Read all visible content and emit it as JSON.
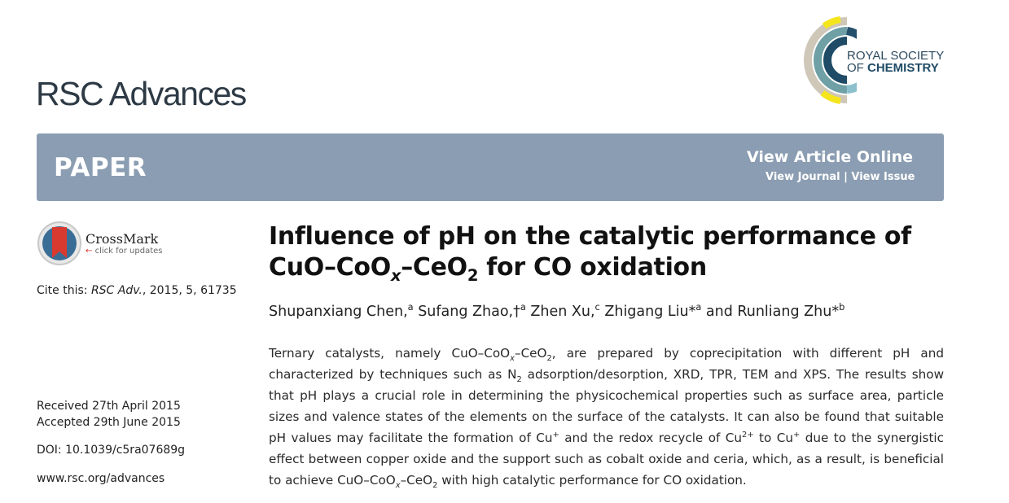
{
  "journal_title": "RSC Advances",
  "publisher_logo": {
    "line1": "ROYAL SOCIETY",
    "line2_prefix": "OF ",
    "line2_bold": "CHEMISTRY"
  },
  "banner": {
    "type_label": "PAPER",
    "view_article_online": "View Article Online",
    "view_journal": "View Journal",
    "separator": "|",
    "view_issue": "View Issue",
    "color": "#8b9db2"
  },
  "crossmark": {
    "name": "CrossMark",
    "subtitle": "click for updates",
    "arrow": "←"
  },
  "cite": {
    "label": "Cite this:",
    "journal": "RSC Adv.",
    "details": ", 2015, 5, 61735"
  },
  "received": "Received 27th April 2015",
  "accepted": "Accepted 29th June 2015",
  "doi": "DOI: 10.1039/c5ra07689g",
  "website": "www.rsc.org/advances",
  "title_segments": [
    {
      "t": "Influence of pH on the catalytic performance of CuO–CoO"
    },
    {
      "t": "x",
      "k": "subi"
    },
    {
      "t": "–CeO"
    },
    {
      "t": "2",
      "k": "sub"
    },
    {
      "t": " for CO oxidation"
    }
  ],
  "author_segments": [
    {
      "t": "Shupanxiang Chen,"
    },
    {
      "t": "a",
      "k": "sup"
    },
    {
      "t": " Sufang Zhao,†"
    },
    {
      "t": "a",
      "k": "sup"
    },
    {
      "t": " Zhen Xu,"
    },
    {
      "t": "c",
      "k": "sup"
    },
    {
      "t": " Zhigang Liu*"
    },
    {
      "t": "a",
      "k": "sup"
    },
    {
      "t": " and Runliang Zhu*"
    },
    {
      "t": "b",
      "k": "sup"
    }
  ],
  "abstract_segments": [
    {
      "t": "Ternary catalysts, namely CuO–CoO"
    },
    {
      "t": "x",
      "k": "subi"
    },
    {
      "t": "–CeO"
    },
    {
      "t": "2",
      "k": "sub"
    },
    {
      "t": ", are prepared by coprecipitation with different pH and characterized by techniques such as N"
    },
    {
      "t": "2",
      "k": "sub"
    },
    {
      "t": " adsorption/desorption, XRD, TPR, TEM and XPS. The results show that pH plays a crucial role in determining the physicochemical properties such as surface area, particle sizes and valence states of the elements on the surface of the catalysts. It can also be found that suitable pH values may facilitate the formation of Cu"
    },
    {
      "t": "+",
      "k": "sup"
    },
    {
      "t": " and the redox recycle of Cu"
    },
    {
      "t": "2+",
      "k": "sup"
    },
    {
      "t": " to Cu"
    },
    {
      "t": "+",
      "k": "sup"
    },
    {
      "t": " due to the synergistic effect between copper oxide and the support such as cobalt oxide and ceria, which, as a result, is beneficial to achieve CuO–CoO"
    },
    {
      "t": "x",
      "k": "subi"
    },
    {
      "t": "–CeO"
    },
    {
      "t": "2",
      "k": "sub"
    },
    {
      "t": " with high catalytic performance for CO oxidation."
    }
  ]
}
